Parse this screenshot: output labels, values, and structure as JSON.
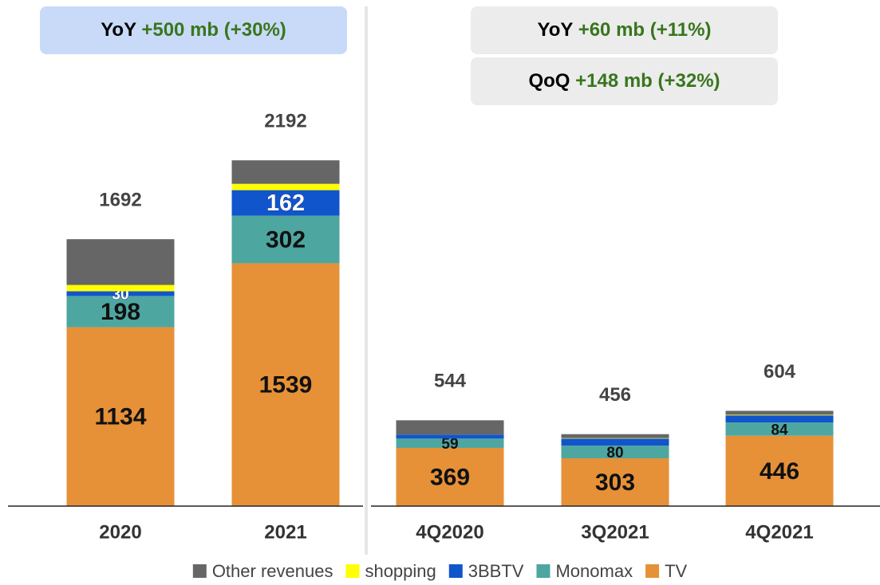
{
  "chart_data": [
    {
      "type": "stacked_bar",
      "annotations": [
        {
          "label": "YoY",
          "value": "+500 mb (+30%)"
        }
      ],
      "categories": [
        "2020",
        "2021"
      ],
      "totals": [
        1692,
        2192
      ],
      "ylim": [
        0,
        2400
      ],
      "series": [
        {
          "name": "TV",
          "color": "#e69138",
          "values": [
            1134,
            1539
          ],
          "value_labels": [
            "1134",
            "1539"
          ]
        },
        {
          "name": "Monomax",
          "color": "#4ea6a0",
          "values": [
            198,
            302
          ],
          "value_labels": [
            "198",
            "302"
          ]
        },
        {
          "name": "3BBTV",
          "color": "#1155cc",
          "values": [
            30,
            162
          ],
          "value_labels": [
            "30",
            "162"
          ]
        },
        {
          "name": "shopping",
          "color": "#ffff00",
          "values": [
            40,
            40
          ]
        },
        {
          "name": "Other revenues",
          "color": "#666666",
          "values": [
            290,
            149
          ]
        }
      ]
    },
    {
      "type": "stacked_bar",
      "annotations": [
        {
          "label": "YoY",
          "value": "+60 mb (+11%)"
        },
        {
          "label": "QoQ",
          "value": "+148 mb (+32%)"
        }
      ],
      "categories": [
        "4Q2020",
        "3Q2021",
        "4Q2021"
      ],
      "totals": [
        544,
        456,
        604
      ],
      "ylim": [
        0,
        2400
      ],
      "series": [
        {
          "name": "TV",
          "color": "#e69138",
          "values": [
            369,
            303,
            446
          ],
          "value_labels": [
            "369",
            "303",
            "446"
          ]
        },
        {
          "name": "Monomax",
          "color": "#4ea6a0",
          "values": [
            59,
            80,
            84
          ],
          "value_labels": [
            "59",
            "80",
            "84"
          ]
        },
        {
          "name": "3BBTV",
          "color": "#1155cc",
          "values": [
            25,
            45,
            45
          ]
        },
        {
          "name": "shopping",
          "color": "#ffff00",
          "values": [
            0,
            3,
            4
          ]
        },
        {
          "name": "Other revenues",
          "color": "#666666",
          "values": [
            91,
            25,
            25
          ]
        }
      ]
    }
  ]
}
